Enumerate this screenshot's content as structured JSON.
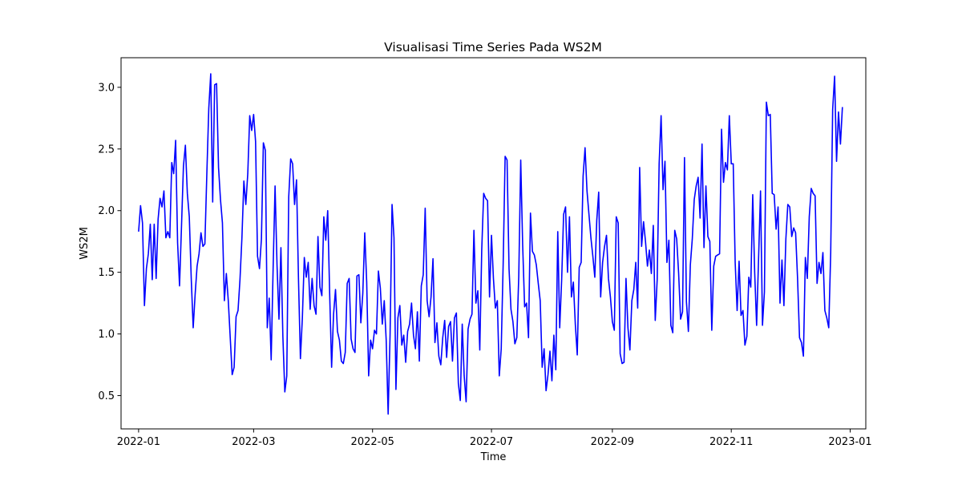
{
  "chart_data": {
    "type": "line",
    "title": "Visualisasi Time Series Pada WS2M",
    "xlabel": "Time",
    "ylabel": "WS2M",
    "xlim": [
      "2021-12-23",
      "2023-01-09"
    ],
    "ylim": [
      0.23,
      3.24
    ],
    "yticks": [
      0.5,
      1.0,
      1.5,
      2.0,
      2.5,
      3.0
    ],
    "ytick_labels": [
      "0.5",
      "1.0",
      "1.5",
      "2.0",
      "2.5",
      "3.0"
    ],
    "xticks": [
      "2022-01-01",
      "2022-03-01",
      "2022-05-01",
      "2022-07-01",
      "2022-09-01",
      "2022-11-01",
      "2023-01-01"
    ],
    "xtick_labels": [
      "2022-01",
      "2022-03",
      "2022-05",
      "2022-07",
      "2022-09",
      "2022-11",
      "2023-01"
    ],
    "grid": false,
    "line_color": "#0000ff",
    "series": [
      {
        "x_start": "2022-01-01",
        "x_step_days": 1,
        "values": [
          1.83,
          2.04,
          1.9,
          1.23,
          1.53,
          1.65,
          1.89,
          1.44,
          1.89,
          1.45,
          1.93,
          2.1,
          2.03,
          2.16,
          1.78,
          1.83,
          1.78,
          2.39,
          2.3,
          2.57,
          1.74,
          1.39,
          1.87,
          2.36,
          2.53,
          2.14,
          1.95,
          1.45,
          1.05,
          1.32,
          1.55,
          1.65,
          1.82,
          1.71,
          1.73,
          2.3,
          2.83,
          3.11,
          2.07,
          3.02,
          3.03,
          2.35,
          2.09,
          1.9,
          1.27,
          1.49,
          1.27,
          0.97,
          0.67,
          0.73,
          1.14,
          1.19,
          1.44,
          1.78,
          2.24,
          2.05,
          2.3,
          2.77,
          2.65,
          2.78,
          2.56,
          1.63,
          1.53,
          1.77,
          2.55,
          2.49,
          1.05,
          1.29,
          0.79,
          1.53,
          2.2,
          1.56,
          1.12,
          1.7,
          0.98,
          0.53,
          0.66,
          2.11,
          2.42,
          2.38,
          2.05,
          2.25,
          1.45,
          0.8,
          1.13,
          1.62,
          1.46,
          1.58,
          1.2,
          1.45,
          1.23,
          1.16,
          1.79,
          1.38,
          1.31,
          1.95,
          1.76,
          2.0,
          1.33,
          0.73,
          1.16,
          1.36,
          1.02,
          0.95,
          0.78,
          0.76,
          0.85,
          1.41,
          1.45,
          0.96,
          0.88,
          0.85,
          1.47,
          1.48,
          1.09,
          1.33,
          1.82,
          1.42,
          0.66,
          0.95,
          0.88,
          1.03,
          1.0,
          1.51,
          1.37,
          1.08,
          1.27,
          0.95,
          0.35,
          1.0,
          2.05,
          1.78,
          0.55,
          1.13,
          1.23,
          0.91,
          0.99,
          0.77,
          1.02,
          1.08,
          1.25,
          0.99,
          0.88,
          1.18,
          0.78,
          1.39,
          1.48,
          2.02,
          1.27,
          1.14,
          1.3,
          1.61,
          0.93,
          1.09,
          0.82,
          0.75,
          0.97,
          1.11,
          0.81,
          1.06,
          1.1,
          0.78,
          1.13,
          1.17,
          0.6,
          0.46,
          1.08,
          0.66,
          0.45,
          1.04,
          1.12,
          1.16,
          1.84,
          1.25,
          1.35,
          0.87,
          1.68,
          2.14,
          2.1,
          2.08,
          1.3,
          1.8,
          1.45,
          1.21,
          1.27,
          0.66,
          0.88,
          1.57,
          2.44,
          2.41,
          1.53,
          1.2,
          1.1,
          0.92,
          0.97,
          1.47,
          2.41,
          1.72,
          1.22,
          1.25,
          0.97,
          1.98,
          1.67,
          1.64,
          1.56,
          1.41,
          1.27,
          0.73,
          0.88,
          0.54,
          0.67,
          0.86,
          0.62,
          0.99,
          0.71,
          1.83,
          1.05,
          1.44,
          1.97,
          2.03,
          1.5,
          1.95,
          1.3,
          1.42,
          1.08,
          0.83,
          1.54,
          1.58,
          2.28,
          2.51,
          2.16,
          1.97,
          1.78,
          1.63,
          1.46,
          1.92,
          2.15,
          1.3,
          1.58,
          1.71,
          1.8,
          1.45,
          1.3,
          1.1,
          1.03,
          1.95,
          1.9,
          0.84,
          0.76,
          0.77,
          1.45,
          1.05,
          0.87,
          1.27,
          1.36,
          1.58,
          1.21,
          2.35,
          1.71,
          1.91,
          1.75,
          1.55,
          1.68,
          1.49,
          1.88,
          1.11,
          1.44,
          2.38,
          2.77,
          2.17,
          2.4,
          1.58,
          1.76,
          1.07,
          1.01,
          1.84,
          1.77,
          1.49,
          1.12,
          1.18,
          2.43,
          1.26,
          1.02,
          1.56,
          1.77,
          2.09,
          2.2,
          2.27,
          1.94,
          2.54,
          1.7,
          2.2,
          1.79,
          1.75,
          1.03,
          1.55,
          1.63,
          1.64,
          1.65,
          2.66,
          2.23,
          2.39,
          2.33,
          2.77,
          2.38,
          2.38,
          1.58,
          1.19,
          1.59,
          1.15,
          1.19,
          0.91,
          0.98,
          1.46,
          1.38,
          2.13,
          1.5,
          1.07,
          1.61,
          2.16,
          1.07,
          1.34,
          2.88,
          2.77,
          2.78,
          2.14,
          2.13,
          1.85,
          2.03,
          1.25,
          1.6,
          1.23,
          1.77,
          2.05,
          2.03,
          1.79,
          1.86,
          1.82,
          1.45,
          0.97,
          0.93,
          0.82,
          1.62,
          1.45,
          1.95,
          2.18,
          2.14,
          2.12,
          1.41,
          1.58,
          1.49,
          1.66,
          1.19,
          1.13,
          1.05,
          1.66,
          2.82,
          3.09,
          2.4,
          2.8,
          2.54,
          2.84
        ]
      }
    ]
  }
}
